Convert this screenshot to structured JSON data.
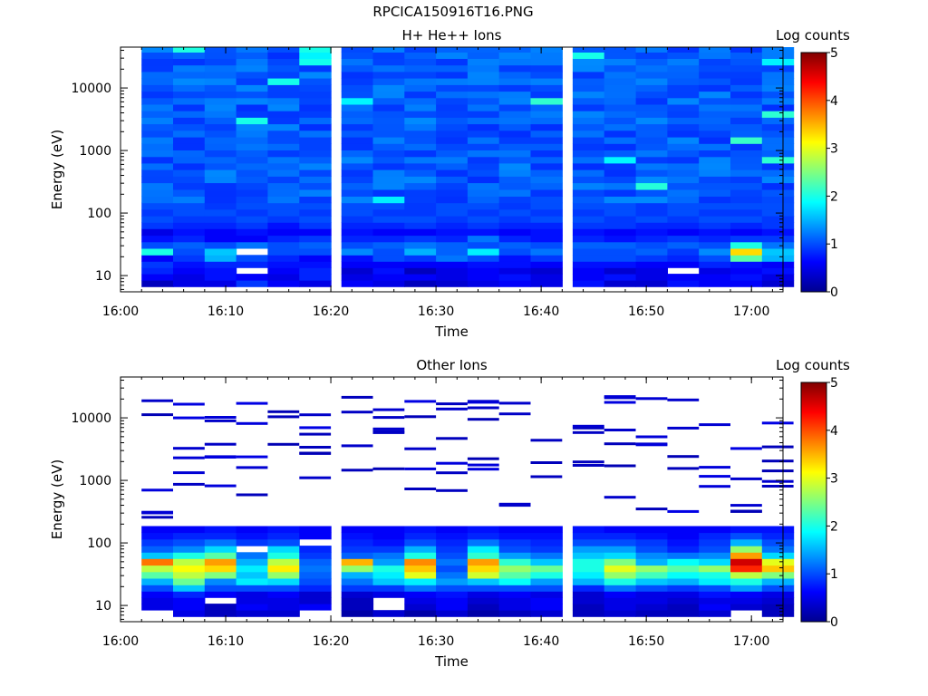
{
  "figure_title": "RPCICA150916T16.PNG",
  "chart_data": [
    {
      "type": "heatmap",
      "title": "H+ He++ Ions",
      "xlabel": "Time",
      "ylabel": "Energy (eV)",
      "x_ticks": [
        "16:00",
        "16:10",
        "16:20",
        "16:30",
        "16:40",
        "16:50",
        "17:00"
      ],
      "x_range": [
        "16:00",
        "17:03"
      ],
      "y_scale": "log",
      "y_ticks": [
        "10",
        "100",
        "1000",
        "10000"
      ],
      "y_range": [
        5.5,
        45000
      ],
      "time_bins_start": [
        "16:02",
        "16:05",
        "16:08",
        "16:11",
        "16:14",
        "16:17",
        "16:21",
        "16:24",
        "16:27",
        "16:30",
        "16:33",
        "16:36",
        "16:39",
        "16:43",
        "16:46",
        "16:49",
        "16:52",
        "16:55",
        "16:58",
        "17:01"
      ],
      "energy_bins_center_eV": [
        7.5,
        9.5,
        12,
        15,
        19,
        24,
        31,
        39,
        50,
        63,
        80,
        102,
        130,
        165,
        210,
        270,
        345,
        440,
        560,
        710,
        900,
        1150,
        1460,
        1860,
        2370,
        3010,
        3830,
        4880,
        6200,
        7900,
        10000,
        12800,
        16300,
        20700,
        26300,
        33500,
        42000
      ],
      "low_energy_log_counts": {
        "energy_eV": [
          7.5,
          9.5,
          12,
          15,
          19,
          24,
          31,
          39,
          50,
          63,
          80,
          102,
          130
        ],
        "rows": [
          [
            0.3,
            0.5,
            0.5,
            0.9,
            0.6,
            0.5,
            0.6,
            0.5,
            0.3,
            0.4,
            0.5,
            0.6,
            0.5,
            0.7,
            0.4,
            0.4,
            0.7,
            0.6,
            0.6,
            0.4
          ],
          [
            0.6,
            0.5,
            0.7,
            0.6,
            0.5,
            0.8,
            0.5,
            0.6,
            0.6,
            0.5,
            0.6,
            0.7,
            0.5,
            0.6,
            0.7,
            0.5,
            0.6,
            0.6,
            0.7,
            0.5
          ],
          [
            0.8,
            0.6,
            0.7,
            null,
            0.6,
            0.8,
            0.4,
            0.7,
            0.3,
            0.5,
            0.6,
            0.5,
            0.4,
            0.6,
            0.4,
            0.5,
            null,
            0.5,
            0.6,
            0.7
          ],
          [
            0.9,
            0.7,
            0.8,
            0.8,
            0.7,
            0.7,
            0.6,
            0.6,
            0.6,
            0.6,
            0.7,
            0.7,
            0.6,
            0.7,
            0.7,
            0.6,
            0.6,
            0.8,
            0.7,
            0.6
          ],
          [
            0.6,
            0.9,
            1.5,
            1.0,
            0.8,
            0.6,
            0.7,
            1.0,
            0.9,
            1.2,
            1.0,
            0.7,
            0.9,
            1.0,
            1.0,
            0.9,
            0.8,
            1.0,
            2.3,
            1.5
          ],
          [
            2.0,
            1.0,
            1.6,
            null,
            1.0,
            1.0,
            1.3,
            1.0,
            1.5,
            1.1,
            1.8,
            1.0,
            1.2,
            1.0,
            1.0,
            1.1,
            0.9,
            1.3,
            3.3,
            1.6
          ],
          [
            1.0,
            1.1,
            1.0,
            1.2,
            1.0,
            1.1,
            1.0,
            1.1,
            1.2,
            1.1,
            1.0,
            1.1,
            1.0,
            1.1,
            1.1,
            1.0,
            1.1,
            1.0,
            2.0,
            1.2
          ],
          [
            0.7,
            0.8,
            0.6,
            0.6,
            0.8,
            0.9,
            0.8,
            0.8,
            0.9,
            0.8,
            1.2,
            0.8,
            0.7,
            0.8,
            0.7,
            0.8,
            0.9,
            0.8,
            0.9,
            0.9
          ],
          [
            0.5,
            0.7,
            0.6,
            0.7,
            0.6,
            0.6,
            0.7,
            0.6,
            0.6,
            0.7,
            0.7,
            0.6,
            0.7,
            0.7,
            0.6,
            0.7,
            0.6,
            0.7,
            0.6,
            0.7
          ],
          [
            0.9,
            0.8,
            0.8,
            0.9,
            0.7,
            0.9,
            0.8,
            0.8,
            0.9,
            0.8,
            0.9,
            0.8,
            0.8,
            0.9,
            0.9,
            0.8,
            0.8,
            0.9,
            0.8,
            0.9
          ],
          [
            1.0,
            0.9,
            0.9,
            1.0,
            0.9,
            1.0,
            0.9,
            1.0,
            1.0,
            0.9,
            1.0,
            0.9,
            1.0,
            1.0,
            0.9,
            1.0,
            0.9,
            1.0,
            1.0,
            0.9
          ],
          [
            0.9,
            1.0,
            1.0,
            0.9,
            1.0,
            0.9,
            1.0,
            0.9,
            0.9,
            1.0,
            0.9,
            1.0,
            0.9,
            0.9,
            1.0,
            0.9,
            1.0,
            0.9,
            0.9,
            1.0
          ],
          [
            1.0,
            1.0,
            0.9,
            1.0,
            1.0,
            1.0,
            1.0,
            1.0,
            0.9,
            1.0,
            1.0,
            0.9,
            1.0,
            1.0,
            1.0,
            0.9,
            1.0,
            1.0,
            1.0,
            1.0
          ]
        ]
      },
      "high_energy_log_counts_typical": "0.9-1.3",
      "colorbar": {
        "label": "Log counts",
        "min": 0,
        "max": 5,
        "ticks": [
          "0",
          "1",
          "2",
          "3",
          "4",
          "5"
        ]
      }
    },
    {
      "type": "heatmap",
      "title": "Other Ions",
      "xlabel": "Time",
      "ylabel": "Energy (eV)",
      "x_ticks": [
        "16:00",
        "16:10",
        "16:20",
        "16:30",
        "16:40",
        "16:50",
        "17:00"
      ],
      "x_range": [
        "16:00",
        "17:03"
      ],
      "y_scale": "log",
      "y_ticks": [
        "10",
        "100",
        "1000",
        "10000"
      ],
      "y_range": [
        5.5,
        45000
      ],
      "time_bins_start": [
        "16:02",
        "16:05",
        "16:08",
        "16:11",
        "16:14",
        "16:17",
        "16:21",
        "16:24",
        "16:27",
        "16:30",
        "16:33",
        "16:36",
        "16:39",
        "16:43",
        "16:46",
        "16:49",
        "16:52",
        "16:55",
        "16:58",
        "17:01"
      ],
      "low_energy_log_counts": {
        "energy_eV": [
          7.5,
          9.5,
          12,
          15,
          19,
          24,
          31,
          39,
          50,
          63,
          80,
          102,
          130,
          165
        ],
        "rows": [
          [
            null,
            0.5,
            0.3,
            0.4,
            0.4,
            null,
            0.2,
            0.4,
            0.2,
            0.4,
            0.2,
            0.3,
            0.4,
            0.3,
            0.4,
            0.3,
            0.3,
            0.4,
            null,
            0.3
          ],
          [
            0.5,
            0.6,
            0.3,
            0.6,
            0.5,
            0.6,
            0.3,
            null,
            0.4,
            0.6,
            0.3,
            0.5,
            0.6,
            0.3,
            0.5,
            0.4,
            0.3,
            0.6,
            0.4,
            0.3
          ],
          [
            0.5,
            0.6,
            null,
            0.5,
            0.5,
            0.4,
            0.3,
            null,
            0.5,
            0.6,
            0.4,
            0.5,
            0.6,
            0.4,
            0.5,
            0.5,
            0.4,
            0.5,
            0.5,
            0.4
          ],
          [
            0.6,
            0.8,
            0.6,
            0.5,
            0.6,
            0.4,
            0.4,
            0.5,
            0.6,
            0.7,
            0.5,
            0.6,
            0.5,
            0.4,
            0.6,
            0.5,
            0.5,
            0.7,
            0.6,
            0.5
          ],
          [
            1.0,
            1.6,
            1.0,
            1.0,
            1.0,
            0.8,
            0.9,
            0.9,
            1.2,
            1.0,
            1.0,
            1.0,
            1.0,
            0.8,
            1.2,
            1.0,
            0.9,
            1.0,
            1.4,
            1.0
          ],
          [
            1.5,
            2.4,
            1.3,
            1.8,
            1.7,
            1.0,
            1.2,
            1.6,
            1.8,
            1.4,
            1.6,
            1.9,
            1.4,
            1.5,
            2.0,
            1.6,
            1.5,
            1.8,
            2.0,
            1.5
          ],
          [
            2.3,
            2.8,
            2.5,
            1.6,
            2.6,
            1.1,
            1.5,
            1.8,
            3.0,
            1.2,
            2.9,
            2.3,
            2.0,
            1.8,
            2.6,
            2.2,
            1.9,
            2.0,
            2.8,
            2.5
          ],
          [
            2.8,
            3.1,
            3.3,
            1.8,
            3.2,
            1.2,
            2.6,
            2.0,
            3.4,
            1.0,
            3.3,
            2.6,
            2.4,
            2.0,
            3.0,
            2.6,
            2.3,
            2.6,
            4.2,
            3.4
          ],
          [
            3.8,
            2.8,
            3.6,
            1.5,
            2.8,
            1.1,
            3.5,
            1.4,
            3.7,
            1.2,
            3.6,
            2.1,
            1.6,
            2.0,
            2.5,
            1.5,
            1.9,
            1.7,
            4.6,
            3.0
          ],
          [
            1.6,
            2.0,
            2.3,
            1.2,
            2.0,
            0.9,
            1.1,
            1.2,
            2.0,
            1.0,
            2.1,
            1.4,
            1.2,
            1.6,
            1.7,
            1.3,
            1.2,
            1.3,
            3.6,
            1.7
          ],
          [
            1.1,
            1.3,
            1.7,
            null,
            1.7,
            0.8,
            0.9,
            0.9,
            1.5,
            0.9,
            1.8,
            1.0,
            0.9,
            1.4,
            1.4,
            1.0,
            0.8,
            1.0,
            2.6,
            1.2
          ],
          [
            0.9,
            1.0,
            1.2,
            0.9,
            1.0,
            null,
            0.8,
            0.7,
            1.0,
            0.8,
            1.2,
            0.9,
            0.8,
            1.0,
            1.0,
            0.9,
            0.7,
            0.9,
            1.5,
            1.0
          ],
          [
            0.7,
            0.8,
            0.8,
            0.7,
            0.8,
            0.6,
            0.7,
            0.6,
            0.8,
            0.7,
            0.8,
            0.7,
            0.7,
            0.8,
            0.8,
            0.7,
            0.6,
            0.8,
            1.0,
            0.8
          ],
          [
            0.6,
            0.6,
            0.7,
            0.6,
            0.7,
            0.6,
            0.6,
            0.6,
            0.7,
            0.6,
            0.7,
            0.6,
            0.6,
            0.7,
            0.6,
            0.6,
            0.6,
            0.6,
            0.7,
            0.7
          ]
        ]
      },
      "sparse_high_energy_log_counts": "0.2-0.5",
      "colorbar": {
        "label": "Log counts",
        "min": 0,
        "max": 5,
        "ticks": [
          "0",
          "1",
          "2",
          "3",
          "4",
          "5"
        ]
      }
    }
  ]
}
